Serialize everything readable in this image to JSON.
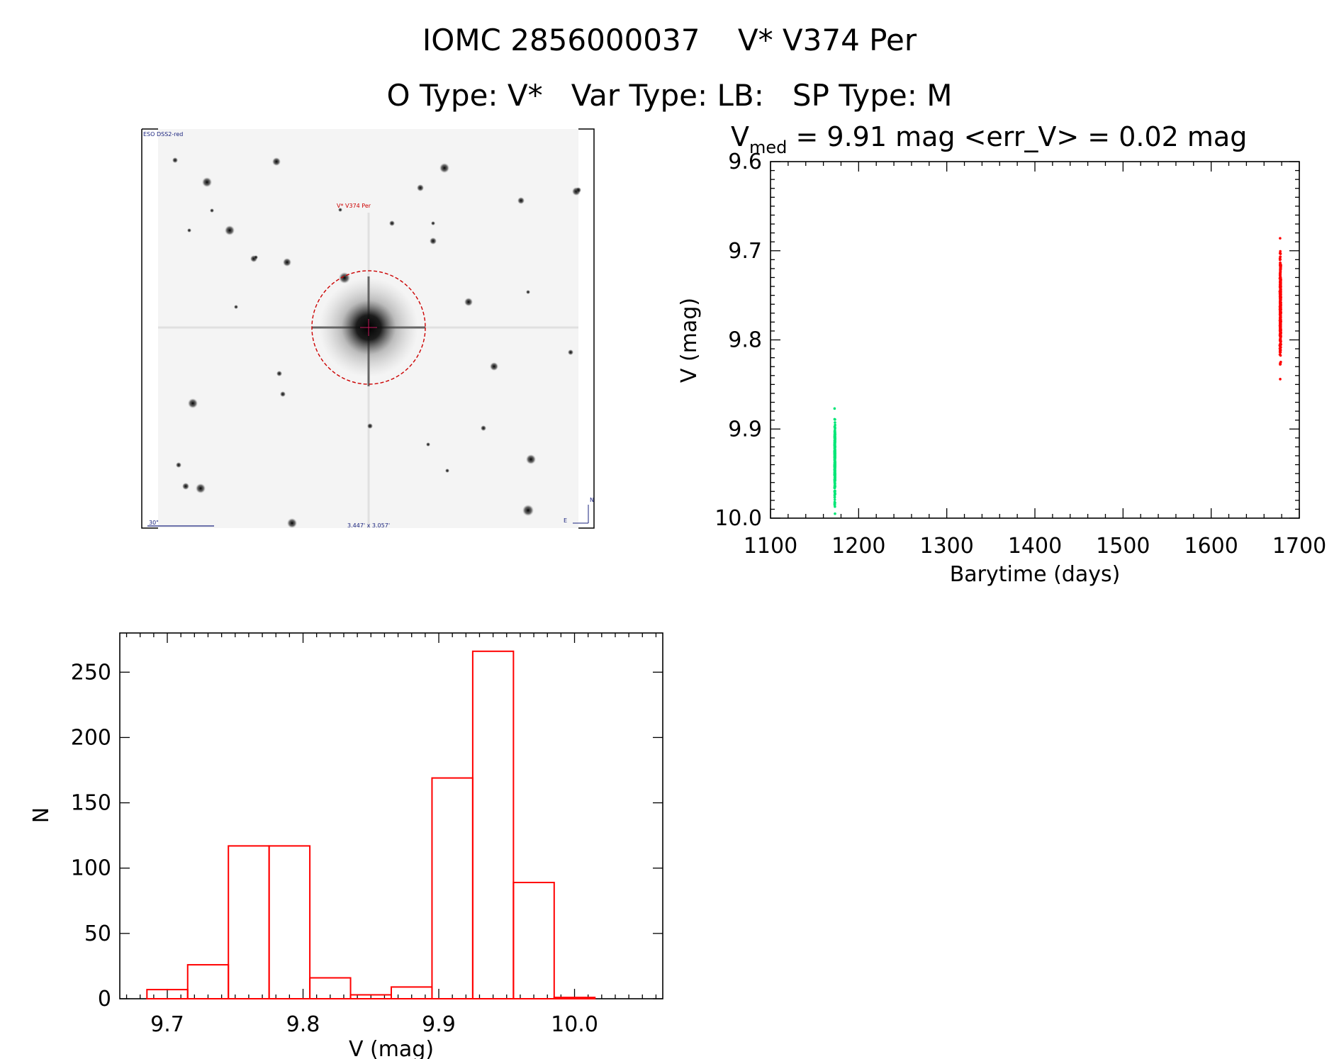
{
  "header": {
    "line1": "IOMC 2856000037    V* V374 Per",
    "line2": "O Type: V*   Var Type: LB:   SP Type: M"
  },
  "sky_image": {
    "survey_label": "ESO DSS2-red",
    "target_label": "V* V374 Per",
    "scale_label": "30\"",
    "fov_label": "3.447' x 3.057'",
    "north_label": "N",
    "east_label": "E"
  },
  "light_curve_header": {
    "v_symbol": "V",
    "v_subscript": "med",
    "rest": " = 9.91 mag <err_V> = 0.02 mag"
  },
  "colors": {
    "green_points": "#00e676",
    "red_points": "#ff0000",
    "histogram": "#ff0000",
    "marker_circle": "#cc0000"
  },
  "chart_data": [
    {
      "type": "scatter",
      "title": "V_med = 9.91 mag <err_V> = 0.02 mag",
      "xlabel": "Barytime (days)",
      "ylabel": "V (mag)",
      "xlim": [
        1100,
        1700
      ],
      "ylim": [
        9.6,
        10.0
      ],
      "y_inverted": true,
      "xticks": [
        1100,
        1200,
        1300,
        1400,
        1500,
        1600,
        1700
      ],
      "yticks": [
        "9.6",
        "9.7",
        "9.8",
        "9.9",
        "10.0"
      ],
      "series": [
        {
          "color": "#00e676",
          "x": [
            1173,
            1173
          ],
          "y_range": [
            9.877,
            9.995
          ],
          "approx_points": 300
        },
        {
          "color": "#ff0000",
          "x": [
            1678,
            1679
          ],
          "y_range": [
            9.686,
            9.844
          ],
          "approx_points": 400
        }
      ]
    },
    {
      "type": "bar",
      "subtype": "histogram",
      "xlabel": "V (mag)",
      "ylabel": "N",
      "xlim": [
        9.665,
        10.065
      ],
      "ylim": [
        0,
        280
      ],
      "xticks": [
        "9.7",
        "9.8",
        "9.9",
        "10.0"
      ],
      "yticks": [
        "0",
        "50",
        "100",
        "150",
        "200",
        "250"
      ],
      "bin_width": 0.03,
      "bins": [
        {
          "left": 9.685,
          "count": 7
        },
        {
          "left": 9.715,
          "count": 26
        },
        {
          "left": 9.745,
          "count": 117
        },
        {
          "left": 9.775,
          "count": 117
        },
        {
          "left": 9.805,
          "count": 16
        },
        {
          "left": 9.835,
          "count": 3
        },
        {
          "left": 9.865,
          "count": 9
        },
        {
          "left": 9.895,
          "count": 169
        },
        {
          "left": 9.925,
          "count": 266
        },
        {
          "left": 9.955,
          "count": 89
        },
        {
          "left": 9.985,
          "count": 1
        }
      ]
    }
  ]
}
